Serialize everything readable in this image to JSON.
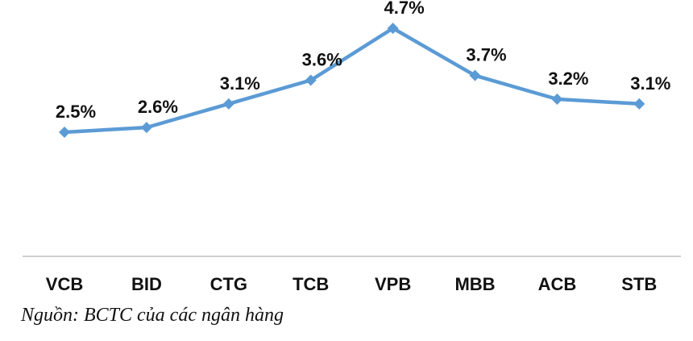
{
  "chart_data": {
    "type": "line",
    "categories": [
      "VCB",
      "BID",
      "CTG",
      "TCB",
      "VPB",
      "MBB",
      "ACB",
      "STB"
    ],
    "values": [
      2.5,
      2.6,
      3.1,
      3.6,
      4.7,
      3.7,
      3.2,
      3.1
    ],
    "data_labels": [
      "2.5%",
      "2.6%",
      "3.1%",
      "3.6%",
      "4.7%",
      "3.7%",
      "3.2%",
      "3.1%"
    ],
    "title": "",
    "xlabel": "",
    "ylabel": "",
    "y_axis_visible": false,
    "grid": false,
    "legend": "none",
    "ylim": [
      0,
      5
    ],
    "line_color": "#5B9BD5",
    "axis_color": "#BFBFBF"
  },
  "source_note": "Nguồn: BCTC của các ngân hàng"
}
